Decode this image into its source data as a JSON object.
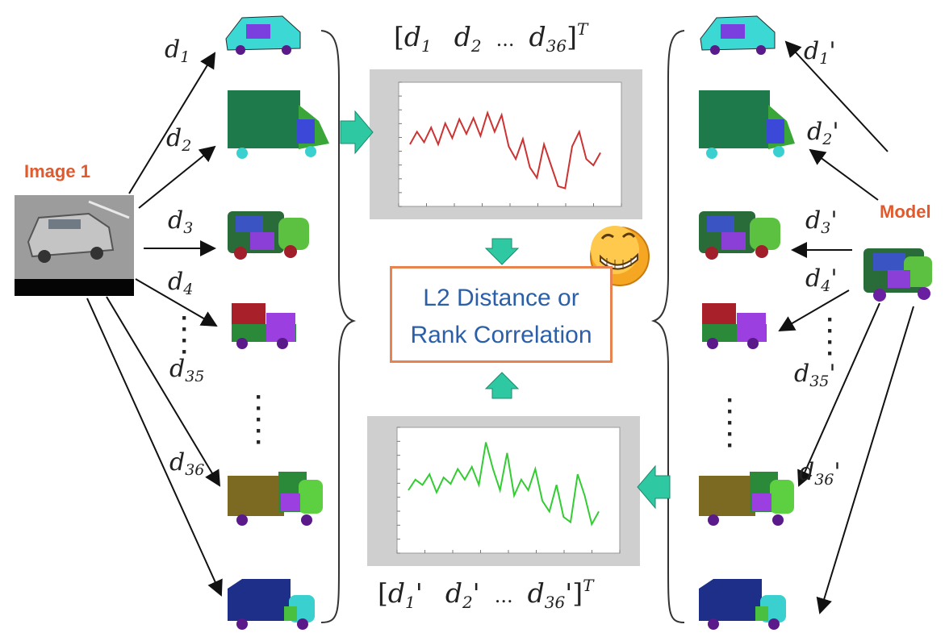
{
  "left": {
    "title": "Image 1",
    "labels": [
      {
        "base": "d",
        "sub": "1",
        "prime": ""
      },
      {
        "base": "d",
        "sub": "2",
        "prime": ""
      },
      {
        "base": "d",
        "sub": "3",
        "prime": ""
      },
      {
        "base": "d",
        "sub": "4",
        "prime": ""
      },
      {
        "base": "d",
        "sub": "35",
        "prime": ""
      },
      {
        "base": "d",
        "sub": "36",
        "prime": ""
      }
    ]
  },
  "right": {
    "title": "Model",
    "labels": [
      {
        "base": "d",
        "sub": "1",
        "prime": "'"
      },
      {
        "base": "d",
        "sub": "2",
        "prime": "'"
      },
      {
        "base": "d",
        "sub": "3",
        "prime": "'"
      },
      {
        "base": "d",
        "sub": "4",
        "prime": "'"
      },
      {
        "base": "d",
        "sub": "35",
        "prime": "'"
      },
      {
        "base": "d",
        "sub": "36",
        "prime": "'"
      }
    ]
  },
  "top_vector": {
    "open": "[",
    "d1": "d",
    "s1": "1",
    "d2": "d",
    "s2": "2",
    "dots": "...",
    "d36": "d",
    "s36": "36",
    "close": "]",
    "sup": "T",
    "p": ""
  },
  "bottom_vector": {
    "open": "[",
    "d1": "d",
    "s1": "1",
    "d2": "d",
    "s2": "2",
    "dots": "...",
    "d36": "d",
    "s36": "36",
    "close": "]",
    "sup": "T",
    "p": "'"
  },
  "center_box": {
    "line1": "L2 Distance or",
    "line2": "Rank Correlation"
  },
  "colors": {
    "accent_orange": "#e2592b",
    "box_border": "#e8834f",
    "box_text": "#2b5fa8",
    "arrow_teal": "#2ec9a2",
    "top_curve": "#cc3333",
    "bottom_curve": "#33cc33",
    "plot_bg": "#cfcfcf"
  },
  "chart_data": [
    {
      "type": "line",
      "series": [
        {
          "values": [
            0.5,
            0.62,
            0.52,
            0.66,
            0.5,
            0.7,
            0.56,
            0.74,
            0.6,
            0.75,
            0.58,
            0.8,
            0.62,
            0.78,
            0.48,
            0.36,
            0.55,
            0.28,
            0.18,
            0.5,
            0.3,
            0.1,
            0.08,
            0.48,
            0.62,
            0.36,
            0.3,
            0.42
          ]
        }
      ]
    },
    {
      "type": "line",
      "series": [
        {
          "values": [
            0.5,
            0.6,
            0.55,
            0.65,
            0.48,
            0.62,
            0.56,
            0.7,
            0.6,
            0.72,
            0.55,
            0.95,
            0.7,
            0.5,
            0.85,
            0.45,
            0.6,
            0.5,
            0.7,
            0.4,
            0.3,
            0.55,
            0.25,
            0.2,
            0.65,
            0.45,
            0.18,
            0.3
          ]
        }
      ]
    }
  ]
}
